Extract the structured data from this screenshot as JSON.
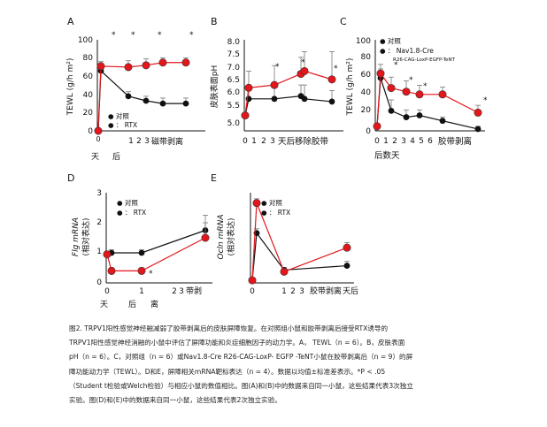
{
  "legend": {
    "control": "● 对照",
    "control_short": "●  对照",
    "rtx": "●  ： RTX",
    "rtx_short": "●  ：  RTX",
    "ko": "●  ： Nav1.8-Cre",
    "ko_sub": "R26-CAG-LoxP-EGFP-TeNT"
  },
  "colors": {
    "control": "#111111",
    "rtx": "#e3161b",
    "star_rtx": "#e3161b"
  },
  "chart_data": [
    {
      "panel": "A",
      "type": "line",
      "ylabel": "TEWL (g/h m²)",
      "yticks": [
        "0",
        "20",
        "40",
        "60",
        "80",
        "100"
      ],
      "ylim": [
        0,
        100
      ],
      "x": [
        0,
        0.2,
        1,
        2,
        3,
        4
      ],
      "xticks": [
        "0",
        "1",
        "2",
        "3"
      ],
      "xlabel_pre": "天",
      "xlabel_mid": "后",
      "xlabel_post": "磁带剥离",
      "series": [
        {
          "name": "对照",
          "values": [
            0,
            66,
            38,
            33,
            30,
            30
          ],
          "errors": [
            0,
            5,
            5,
            5,
            6,
            6
          ]
        },
        {
          "name": "RTX",
          "values": [
            0,
            71,
            70,
            72,
            75,
            75
          ],
          "errors": [
            0,
            5,
            7,
            7,
            5,
            5
          ]
        }
      ],
      "stars": [
        "*",
        "*",
        "*",
        "*"
      ]
    },
    {
      "panel": "B",
      "type": "line",
      "ylabel": "皮肤表面pH",
      "yticks": [
        "5.0",
        "5.5",
        "6.0",
        "6.5",
        "7.0",
        "7.5",
        "8.0"
      ],
      "ylim": [
        5.0,
        8.0
      ],
      "x": [
        0,
        0.2,
        1,
        2,
        3,
        4
      ],
      "xticks": [
        "0",
        "1",
        "2",
        "3"
      ],
      "xlabel": "天后移除胶带",
      "series": [
        {
          "name": "对照",
          "values": [
            5.3,
            5.9,
            5.9,
            6.0,
            5.9,
            5.8
          ],
          "errors": [
            0,
            0.4,
            0.4,
            0.4,
            0.5,
            0.4
          ]
        },
        {
          "name": "RTX",
          "values": [
            5.3,
            6.3,
            6.4,
            6.8,
            6.9,
            6.6
          ],
          "errors": [
            0,
            0.6,
            0.7,
            0.6,
            0.7,
            1.0
          ]
        }
      ],
      "stars": [
        "*",
        "*",
        "*"
      ]
    },
    {
      "panel": "C",
      "type": "line",
      "ylabel": "TEWL (g/h m²)",
      "yticks": [
        "0",
        "20",
        "40",
        "60",
        "80",
        "100"
      ],
      "ylim": [
        0,
        100
      ],
      "x": [
        0,
        0.5,
        1,
        2,
        3,
        4,
        6
      ],
      "xticks": [
        "0",
        "1",
        "2",
        "3",
        "4",
        "5",
        "6"
      ],
      "xlabel": "胶带剥离",
      "xlabel_sub": "后数天",
      "series": [
        {
          "name": "对照",
          "values": [
            5,
            58,
            22,
            15,
            17,
            11,
            2
          ],
          "errors": [
            0,
            10,
            12,
            8,
            6,
            4,
            3
          ]
        },
        {
          "name": "Nav1.8-Cre",
          "values": [
            5,
            63,
            47,
            43,
            40,
            40,
            20
          ],
          "errors": [
            0,
            10,
            12,
            12,
            10,
            8,
            8
          ]
        }
      ],
      "stars": [
        "*",
        "*",
        "*",
        "*"
      ]
    },
    {
      "panel": "D",
      "type": "line",
      "ylabel": "Flg mRNA",
      "ylabel_sub": "(相对表达)",
      "yticks": [
        "0",
        "1",
        "2",
        "3"
      ],
      "ylim": [
        0,
        3
      ],
      "x": [
        0,
        0.2,
        1,
        3
      ],
      "xticks": [
        "0",
        "1",
        "2",
        "3"
      ],
      "xlabel_pre": "天",
      "xlabel_mid": "后",
      "xlabel_mid2": "离",
      "xlabel_post": "带剥",
      "series": [
        {
          "name": "对照",
          "values": [
            0.95,
            1.0,
            1.0,
            1.75
          ],
          "errors": [
            0.1,
            0.1,
            0.1,
            0.5
          ]
        },
        {
          "name": "RTX",
          "values": [
            0.95,
            0.4,
            0.4,
            1.5
          ],
          "errors": [
            0.1,
            0.1,
            0.1,
            0.5
          ]
        }
      ],
      "stars": [
        "*"
      ]
    },
    {
      "panel": "E",
      "type": "line",
      "ylabel": "Ocln mRNA",
      "ylabel_sub": "(相对表达)",
      "yticks": [],
      "x": [
        0,
        0.2,
        1,
        3
      ],
      "xticks": [
        "0",
        "1",
        "2",
        "3"
      ],
      "xlabel": "天后",
      "xlabel_pre": "胶带剥离",
      "series": [
        {
          "name": "对照",
          "values": [
            0.3,
            5.8,
            1.5,
            2.0
          ],
          "errors": [
            0.1,
            0.5,
            0.3,
            0.5
          ]
        },
        {
          "name": "RTX",
          "values": [
            0.3,
            9.3,
            1.3,
            4.1
          ],
          "errors": [
            0.1,
            0.5,
            0.3,
            0.6
          ]
        }
      ],
      "stars": []
    }
  ],
  "panels": {
    "A": "A",
    "B": "B",
    "C": "C",
    "D": "D",
    "E": "E"
  },
  "caption": [
    "图2. TRPV1阳性感觉神经融减弱了胶带剥离后的皮肤屏障恢复。在对照组小鼠和胶带剥离后接受RTX诱导的",
    "TRPV1阳性感觉神经消融的小鼠中评估了屏障功能和炎症细胞因子的动力学。A， TEWL（n = 6）。B，皮肤表面",
    "pH（n = 6）。C，对照组（n = 6）或Nav1.8-Cre R26-CAG-LoxP- EGFP -TeNT小鼠在胶带剥离后（n = 9）的屏",
    "障功能动力学（TEWL）。D和E，屏障相关mRNA靶标表达（n = 4）。数据以均值±标准差表示。*P < .05",
    "（Student t检验或Welch检验）与相应小鼠的数值相比。图(A)和(B)中的数据来自同一小鼠，这些结果代表3次独立",
    "实验。图(D)和(E)中的数据来自同一小鼠，这些结果代表2次独立实验。"
  ]
}
